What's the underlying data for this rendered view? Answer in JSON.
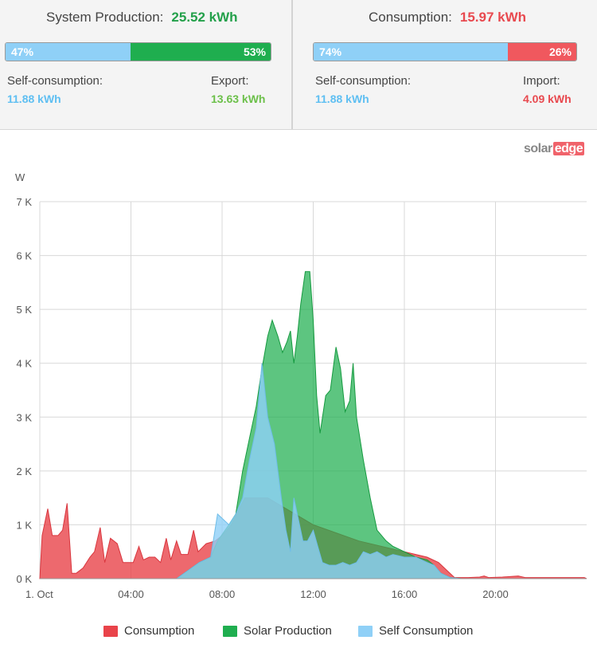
{
  "production": {
    "title": "System Production:",
    "total": "25.52 kWh",
    "left_pct_label": "47%",
    "right_pct_label": "53%",
    "left_fraction": 0.47,
    "self_label": "Self-consumption:",
    "self_value": "11.88 kWh",
    "export_label": "Export:",
    "export_value": "13.63 kWh"
  },
  "consumption": {
    "title": "Consumption:",
    "total": "15.97 kWh",
    "left_pct_label": "74%",
    "right_pct_label": "26%",
    "left_fraction": 0.74,
    "self_label": "Self-consumption:",
    "self_value": "11.88 kWh",
    "import_label": "Import:",
    "import_value": "4.09 kWh"
  },
  "colors": {
    "self_blue": "#8fd0f7",
    "production_green": "#1fae4f",
    "import_red": "#f0585e",
    "text_green": "#23a04a",
    "text_red": "#e8494f",
    "text_blue": "#5fbff2",
    "export_green": "#6cc04a"
  },
  "logo": {
    "part1": "solar",
    "part2": "edge"
  },
  "chart_data": {
    "type": "area",
    "ylabel": "W",
    "ylim": [
      0,
      7000
    ],
    "xlim": [
      0,
      24
    ],
    "y_ticks": [
      0,
      1000,
      2000,
      3000,
      4000,
      5000,
      6000,
      7000
    ],
    "y_tick_labels": [
      "0 K",
      "1 K",
      "2 K",
      "3 K",
      "4 K",
      "5 K",
      "6 K",
      "7 K"
    ],
    "x_ticks": [
      0,
      4,
      8,
      12,
      16,
      20
    ],
    "x_tick_labels": [
      "1. Oct",
      "04:00",
      "08:00",
      "12:00",
      "16:00",
      "20:00"
    ],
    "grid": true,
    "legend_position": "bottom",
    "series": [
      {
        "name": "Consumption",
        "color": "#e9434a",
        "points": [
          [
            0,
            0
          ],
          [
            0.1,
            800
          ],
          [
            0.35,
            1300
          ],
          [
            0.55,
            800
          ],
          [
            0.8,
            800
          ],
          [
            1.0,
            900
          ],
          [
            1.2,
            1400
          ],
          [
            1.4,
            100
          ],
          [
            1.6,
            100
          ],
          [
            1.9,
            200
          ],
          [
            2.2,
            400
          ],
          [
            2.4,
            500
          ],
          [
            2.65,
            950
          ],
          [
            2.85,
            300
          ],
          [
            3.1,
            750
          ],
          [
            3.4,
            650
          ],
          [
            3.65,
            300
          ],
          [
            3.9,
            300
          ],
          [
            4.1,
            300
          ],
          [
            4.35,
            600
          ],
          [
            4.55,
            350
          ],
          [
            4.8,
            400
          ],
          [
            5.05,
            400
          ],
          [
            5.3,
            300
          ],
          [
            5.55,
            750
          ],
          [
            5.75,
            350
          ],
          [
            6.0,
            700
          ],
          [
            6.2,
            450
          ],
          [
            6.5,
            450
          ],
          [
            6.75,
            900
          ],
          [
            6.95,
            500
          ],
          [
            7.3,
            650
          ],
          [
            7.7,
            700
          ],
          [
            8.0,
            800
          ],
          [
            8.4,
            1000
          ],
          [
            9.0,
            1500
          ],
          [
            10.0,
            1500
          ],
          [
            12.0,
            1000
          ],
          [
            14.0,
            700
          ],
          [
            16.0,
            500
          ],
          [
            17.0,
            400
          ],
          [
            17.5,
            300
          ],
          [
            18.2,
            20
          ],
          [
            18.8,
            20
          ],
          [
            19.3,
            30
          ],
          [
            19.5,
            50
          ],
          [
            19.7,
            20
          ],
          [
            20.3,
            30
          ],
          [
            21.0,
            50
          ],
          [
            21.3,
            20
          ],
          [
            23.9,
            20
          ],
          [
            24,
            0
          ]
        ]
      },
      {
        "name": "Solar Production",
        "color": "#1fae4f",
        "points": [
          [
            6.0,
            0
          ],
          [
            6.5,
            150
          ],
          [
            7.0,
            300
          ],
          [
            7.5,
            400
          ],
          [
            7.8,
            700
          ],
          [
            8.3,
            1000
          ],
          [
            8.6,
            1200
          ],
          [
            8.9,
            2000
          ],
          [
            9.2,
            2600
          ],
          [
            9.5,
            3200
          ],
          [
            9.75,
            3900
          ],
          [
            10.0,
            4500
          ],
          [
            10.2,
            4800
          ],
          [
            10.45,
            4500
          ],
          [
            10.65,
            4200
          ],
          [
            10.85,
            4400
          ],
          [
            11.0,
            4600
          ],
          [
            11.15,
            4000
          ],
          [
            11.3,
            4500
          ],
          [
            11.45,
            5100
          ],
          [
            11.65,
            5700
          ],
          [
            11.85,
            5700
          ],
          [
            12.0,
            4800
          ],
          [
            12.15,
            3400
          ],
          [
            12.3,
            2700
          ],
          [
            12.55,
            3400
          ],
          [
            12.75,
            3500
          ],
          [
            13.0,
            4300
          ],
          [
            13.2,
            3900
          ],
          [
            13.4,
            3100
          ],
          [
            13.6,
            3300
          ],
          [
            13.75,
            4000
          ],
          [
            13.9,
            3000
          ],
          [
            14.2,
            2200
          ],
          [
            14.5,
            1500
          ],
          [
            14.8,
            900
          ],
          [
            15.2,
            700
          ],
          [
            15.5,
            600
          ],
          [
            16.0,
            500
          ],
          [
            16.5,
            400
          ],
          [
            17.0,
            350
          ],
          [
            17.3,
            250
          ],
          [
            17.6,
            100
          ],
          [
            18.0,
            20
          ],
          [
            18.5,
            0
          ]
        ]
      },
      {
        "name": "Self Consumption",
        "color": "#8fd0f7",
        "points": [
          [
            6.0,
            0
          ],
          [
            6.5,
            150
          ],
          [
            7.0,
            300
          ],
          [
            7.5,
            400
          ],
          [
            7.8,
            1200
          ],
          [
            8.3,
            1000
          ],
          [
            8.6,
            1200
          ],
          [
            8.9,
            1500
          ],
          [
            9.2,
            2200
          ],
          [
            9.5,
            2800
          ],
          [
            9.75,
            4000
          ],
          [
            10.0,
            3000
          ],
          [
            10.3,
            2500
          ],
          [
            10.6,
            1500
          ],
          [
            10.8,
            900
          ],
          [
            11.0,
            500
          ],
          [
            11.15,
            1500
          ],
          [
            11.35,
            1100
          ],
          [
            11.55,
            700
          ],
          [
            11.75,
            700
          ],
          [
            12.0,
            900
          ],
          [
            12.2,
            600
          ],
          [
            12.4,
            300
          ],
          [
            12.7,
            250
          ],
          [
            13.0,
            250
          ],
          [
            13.3,
            300
          ],
          [
            13.6,
            250
          ],
          [
            13.9,
            300
          ],
          [
            14.2,
            500
          ],
          [
            14.5,
            450
          ],
          [
            14.8,
            500
          ],
          [
            15.2,
            400
          ],
          [
            15.5,
            450
          ],
          [
            16.0,
            400
          ],
          [
            16.5,
            400
          ],
          [
            17.0,
            300
          ],
          [
            17.3,
            250
          ],
          [
            17.6,
            100
          ],
          [
            18.0,
            20
          ],
          [
            18.5,
            0
          ]
        ]
      }
    ]
  }
}
